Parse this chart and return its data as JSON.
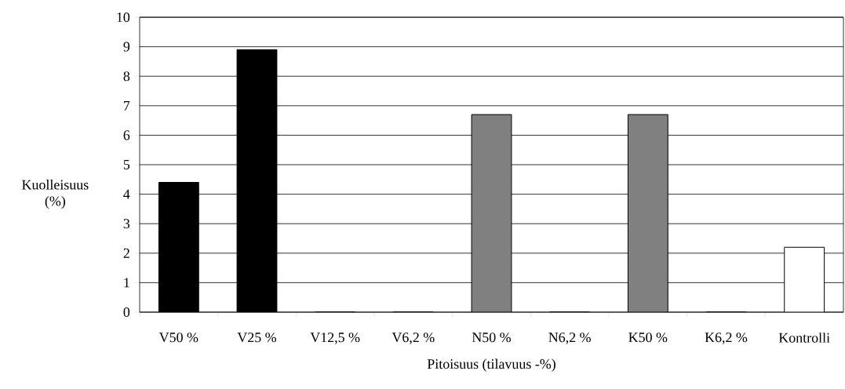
{
  "chart_data": {
    "type": "bar",
    "xlabel": "Pitoisuus (tilavuus -%)",
    "ylabel": "Kuolleisuus (%)",
    "categories": [
      "V50 %",
      "V25 %",
      "V12,5 %",
      "V6,2 %",
      "N50 %",
      "N6,2 %",
      "K50 %",
      "K6,2 %",
      "Kontrolli"
    ],
    "values": [
      4.4,
      8.9,
      0,
      0,
      6.7,
      0,
      6.7,
      0,
      2.2
    ],
    "colors": [
      "#000000",
      "#000000",
      "#000000",
      "#000000",
      "#808080",
      "#808080",
      "#808080",
      "#808080",
      "#ffffff"
    ],
    "ylim": [
      0,
      10
    ],
    "yticks": [
      0,
      1,
      2,
      3,
      4,
      5,
      6,
      7,
      8,
      9,
      10
    ],
    "grid": "y"
  }
}
